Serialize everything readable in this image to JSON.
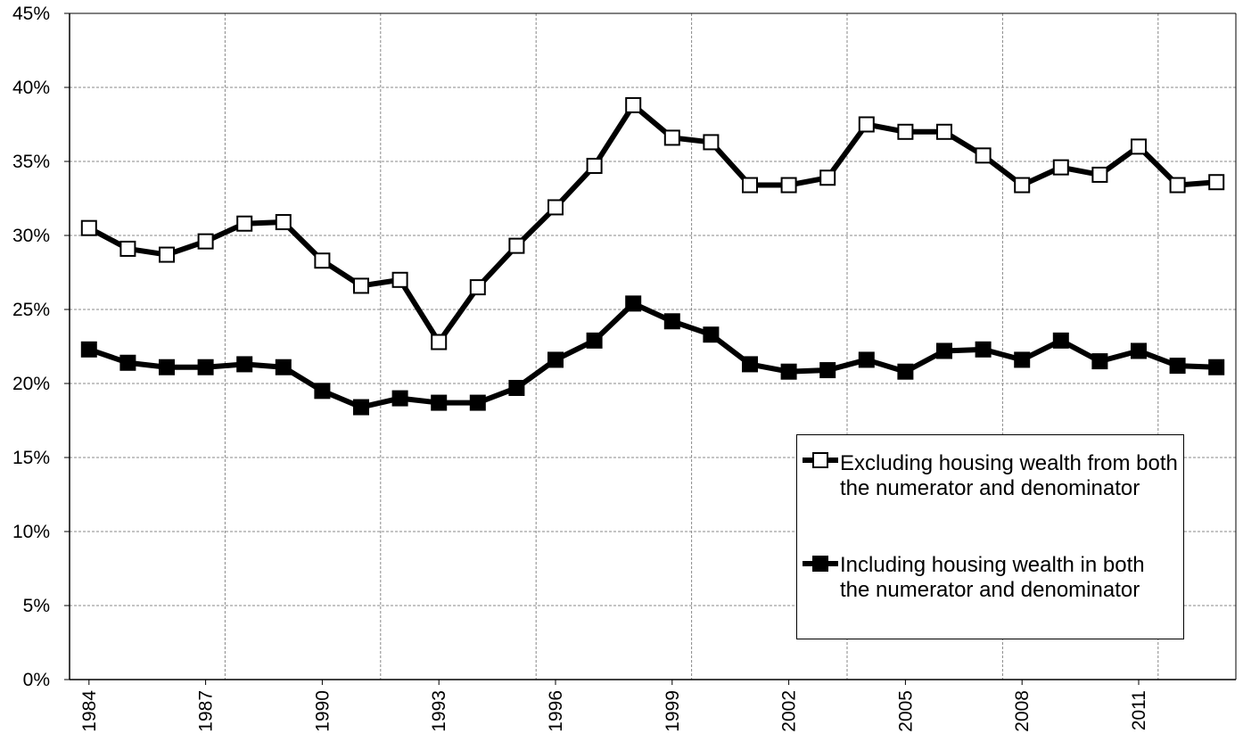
{
  "chart_data": {
    "type": "line",
    "categories": [
      "1984",
      null,
      null,
      "1987",
      null,
      null,
      "1990",
      null,
      null,
      "1993",
      null,
      null,
      "1996",
      null,
      null,
      "1999",
      null,
      null,
      "2002",
      null,
      null,
      "2005",
      null,
      null,
      "2008",
      null,
      null,
      "2011",
      null,
      null
    ],
    "series": [
      {
        "name": "Excluding housing wealth from both the numerator and denominator",
        "color": "#ffffff",
        "values": [
          30.5,
          29.1,
          28.7,
          29.6,
          30.8,
          30.9,
          28.3,
          26.6,
          27.0,
          22.8,
          26.5,
          29.3,
          31.9,
          34.7,
          38.8,
          36.6,
          36.3,
          33.4,
          33.4,
          33.9,
          37.5,
          37.0,
          37.0,
          35.4,
          33.4,
          34.6,
          34.1,
          36.0,
          33.4,
          33.6
        ]
      },
      {
        "name": "Including housing wealth in both the numerator and denominator",
        "color": "#000000",
        "values": [
          22.3,
          21.4,
          21.1,
          21.1,
          21.3,
          21.1,
          19.5,
          18.4,
          19.0,
          18.7,
          18.7,
          19.7,
          21.6,
          22.9,
          25.4,
          24.2,
          23.3,
          21.3,
          20.8,
          20.9,
          21.6,
          20.8,
          22.2,
          22.3,
          21.6,
          22.9,
          21.5,
          22.2,
          21.2,
          21.1
        ]
      }
    ],
    "ylim": [
      0,
      45
    ],
    "yticks": [
      {
        "value": 0,
        "label": "0%"
      },
      {
        "value": 5,
        "label": "5%"
      },
      {
        "value": 10,
        "label": "10%"
      },
      {
        "value": 15,
        "label": "15%"
      },
      {
        "value": 20,
        "label": "20%"
      },
      {
        "value": 25,
        "label": "25%"
      },
      {
        "value": 30,
        "label": "30%"
      },
      {
        "value": 35,
        "label": "35%"
      },
      {
        "value": 40,
        "label": "40%"
      },
      {
        "value": 45,
        "label": "45%"
      }
    ],
    "grid": true
  }
}
